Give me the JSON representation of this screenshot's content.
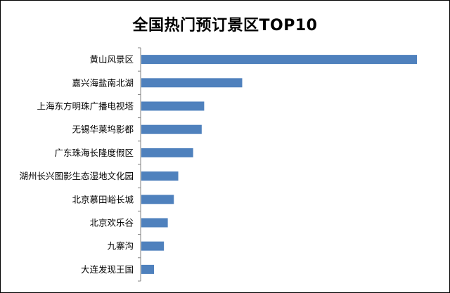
{
  "chart_data": {
    "type": "bar",
    "orientation": "horizontal",
    "title": "全国热门预订景区TOP10",
    "xlabel": "",
    "ylabel": "",
    "categories": [
      "黄山风景区",
      "嘉兴海盐南北湖",
      "上海东方明珠广播电视塔",
      "无锡华莱坞影都",
      "广东珠海长隆度假区",
      "湖州长兴图影生态湿地文化园",
      "北京慕田峪长城",
      "北京欢乐谷",
      "九寨沟",
      "大连发现王国"
    ],
    "values": [
      100,
      36.6,
      22.8,
      21.9,
      18.8,
      13.4,
      11.8,
      9.6,
      8.2,
      4.6
    ],
    "xlim": [
      0,
      100
    ],
    "grid": false,
    "legend": "none",
    "bar_color": "#4f81bd",
    "axis_color": "#808080"
  }
}
